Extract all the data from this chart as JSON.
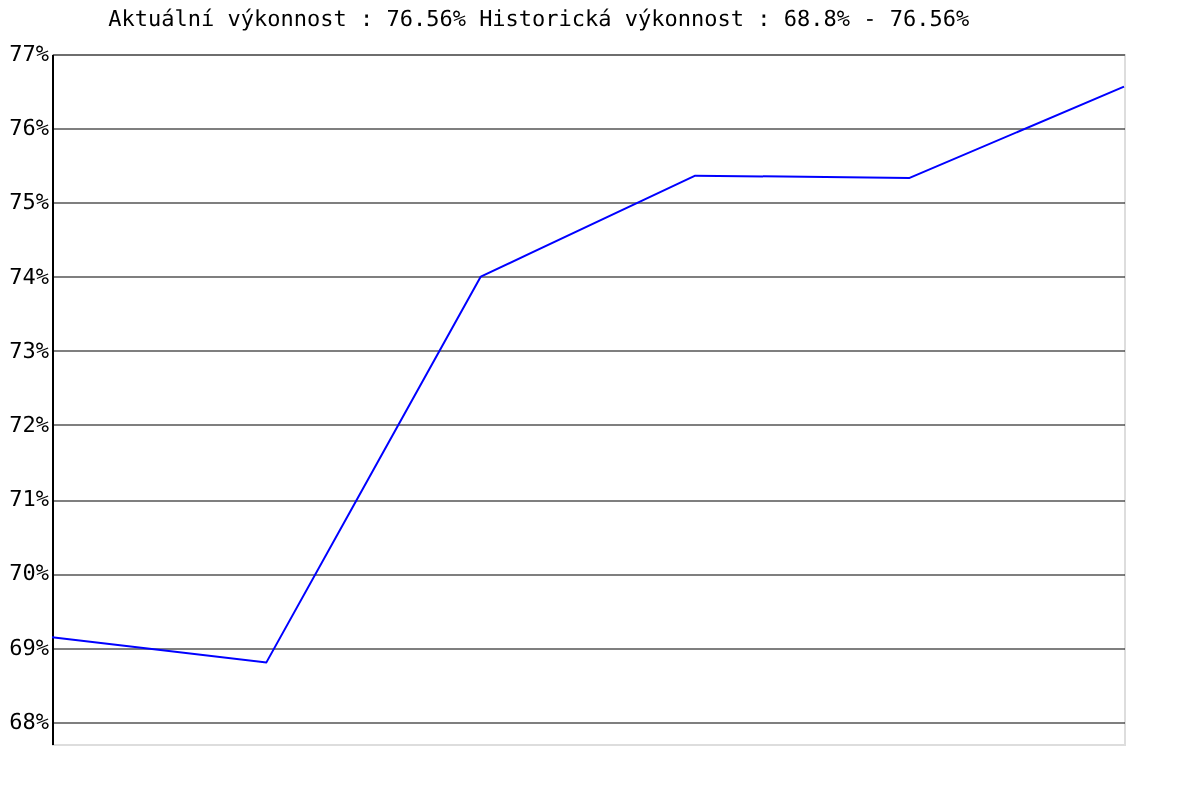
{
  "chart_data": {
    "type": "line",
    "title": "Aktuální výkonnost : 76.56%  Historická výkonnost : 68.8% - 76.56%",
    "categories": [
      null,
      null,
      null,
      null,
      null,
      null
    ],
    "series": [
      {
        "color": "#0000ff",
        "values": [
          69.14,
          68.8,
          74.0,
          75.36,
          75.33,
          76.56
        ]
      }
    ],
    "ylim": [
      67.7,
      77
    ],
    "yticks": [
      {
        "value": 68,
        "label": "68%"
      },
      {
        "value": 69,
        "label": "69%"
      },
      {
        "value": 70,
        "label": "70%"
      },
      {
        "value": 71,
        "label": "71%"
      },
      {
        "value": 72,
        "label": "72%"
      },
      {
        "value": 73,
        "label": "73%"
      },
      {
        "value": 74,
        "label": "74%"
      },
      {
        "value": 75,
        "label": "75%"
      },
      {
        "value": 76,
        "label": "76%"
      },
      {
        "value": 77,
        "label": "77%"
      }
    ],
    "grid": "y",
    "tick_labels": "y",
    "legend": false,
    "marker": "none",
    "line_style": "solid"
  }
}
